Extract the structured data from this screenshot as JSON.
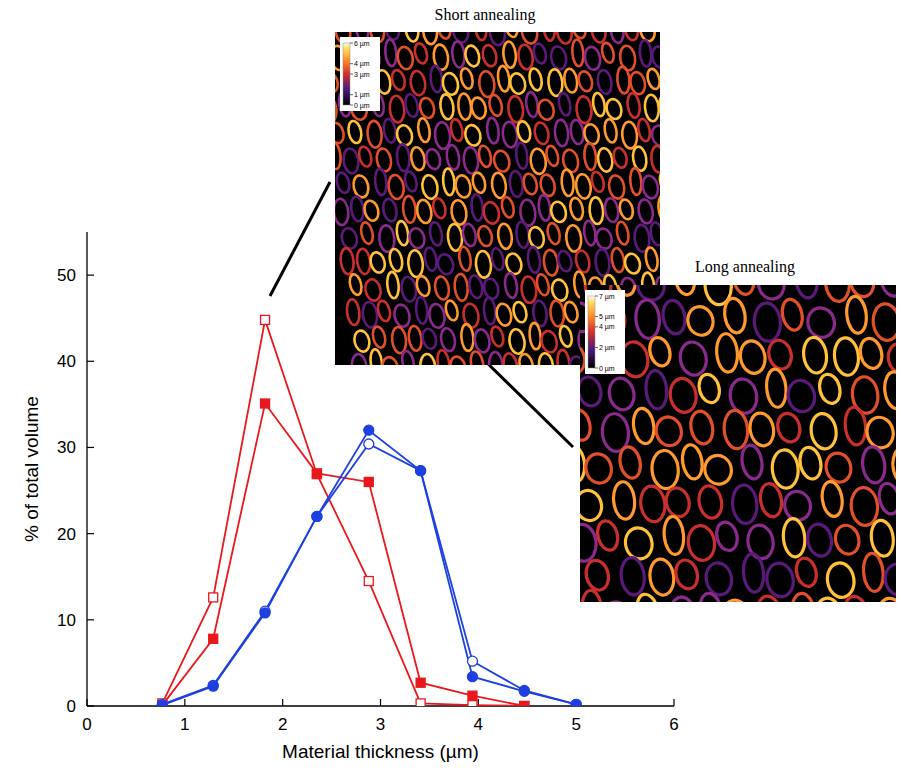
{
  "chart_data": {
    "type": "line",
    "xlabel": "Material thickness (µm)",
    "ylabel": "% of total volume",
    "x": [
      0.77,
      1.29,
      1.82,
      2.35,
      2.88,
      3.41,
      3.94,
      4.47,
      5.0
    ],
    "series": [
      {
        "color": "#e8181c",
        "marker": "square-open",
        "values": [
          0.3,
          12.6,
          44.8,
          26.9,
          14.5,
          0.3,
          0.1,
          0,
          null
        ]
      },
      {
        "color": "#e8181c",
        "marker": "square",
        "values": [
          0.1,
          7.8,
          35.1,
          27.0,
          26.0,
          2.7,
          1.2,
          0,
          null
        ]
      },
      {
        "color": "#1e40e0",
        "marker": "circle-open",
        "values": [
          0.2,
          2.4,
          11.0,
          22.0,
          30.4,
          27.3,
          5.2,
          1.8,
          0.2
        ]
      },
      {
        "color": "#1e40e0",
        "marker": "circle",
        "values": [
          0.1,
          2.3,
          10.8,
          22.0,
          32.0,
          27.3,
          3.4,
          1.7,
          0.2
        ]
      }
    ],
    "xlim": [
      0,
      6
    ],
    "xticks": [
      0,
      1,
      2,
      3,
      4,
      5,
      6
    ],
    "ylim": [
      0,
      55
    ],
    "yticks": [
      0,
      10,
      20,
      30,
      40,
      50
    ],
    "grid": false,
    "insets": [
      {
        "title": "Short annealing",
        "colorbar_range": [
          0,
          6
        ],
        "colorbar_ticks": [
          {
            "value": 6,
            "label": "6 µm"
          },
          {
            "value": 4,
            "label": "4 µm"
          },
          {
            "value": 3,
            "label": "3 µm"
          },
          {
            "value": 1,
            "label": "1 µm"
          },
          {
            "value": 0,
            "label": "0 µm"
          }
        ]
      },
      {
        "title": "Long annealing",
        "colorbar_range": [
          0,
          7
        ],
        "colorbar_ticks": [
          {
            "value": 7,
            "label": "7 µm"
          },
          {
            "value": 5,
            "label": "5 µm"
          },
          {
            "value": 4,
            "label": "4 µm"
          },
          {
            "value": 2,
            "label": "2 µm"
          },
          {
            "value": 0,
            "label": "0 µm"
          }
        ]
      }
    ]
  }
}
